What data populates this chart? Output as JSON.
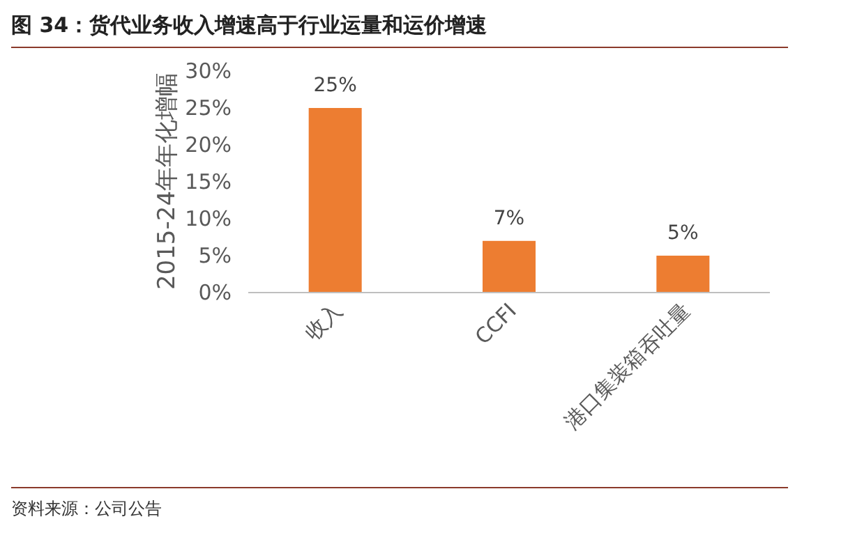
{
  "chart_data": {
    "type": "bar",
    "title": "图 34：货代业务收入增速高于行业运量和运价增速",
    "ylabel": "2015-24年年化增幅",
    "categories": [
      "收入",
      "CCFI",
      "港口集装箱吞吐量"
    ],
    "values": [
      25,
      7,
      5
    ],
    "color": "#ed7d31",
    "value_labels": [
      "25%",
      "7%",
      "5%"
    ],
    "ylim": [
      0,
      30
    ],
    "yticks": [
      {
        "value": 0,
        "label": "0%"
      },
      {
        "value": 5,
        "label": "5%"
      },
      {
        "value": 10,
        "label": "10%"
      },
      {
        "value": 15,
        "label": "15%"
      },
      {
        "value": 20,
        "label": "20%"
      },
      {
        "value": 25,
        "label": "25%"
      },
      {
        "value": 30,
        "label": "30%"
      }
    ],
    "grid": false,
    "annotations": [
      "资料来源：公司公告"
    ]
  }
}
